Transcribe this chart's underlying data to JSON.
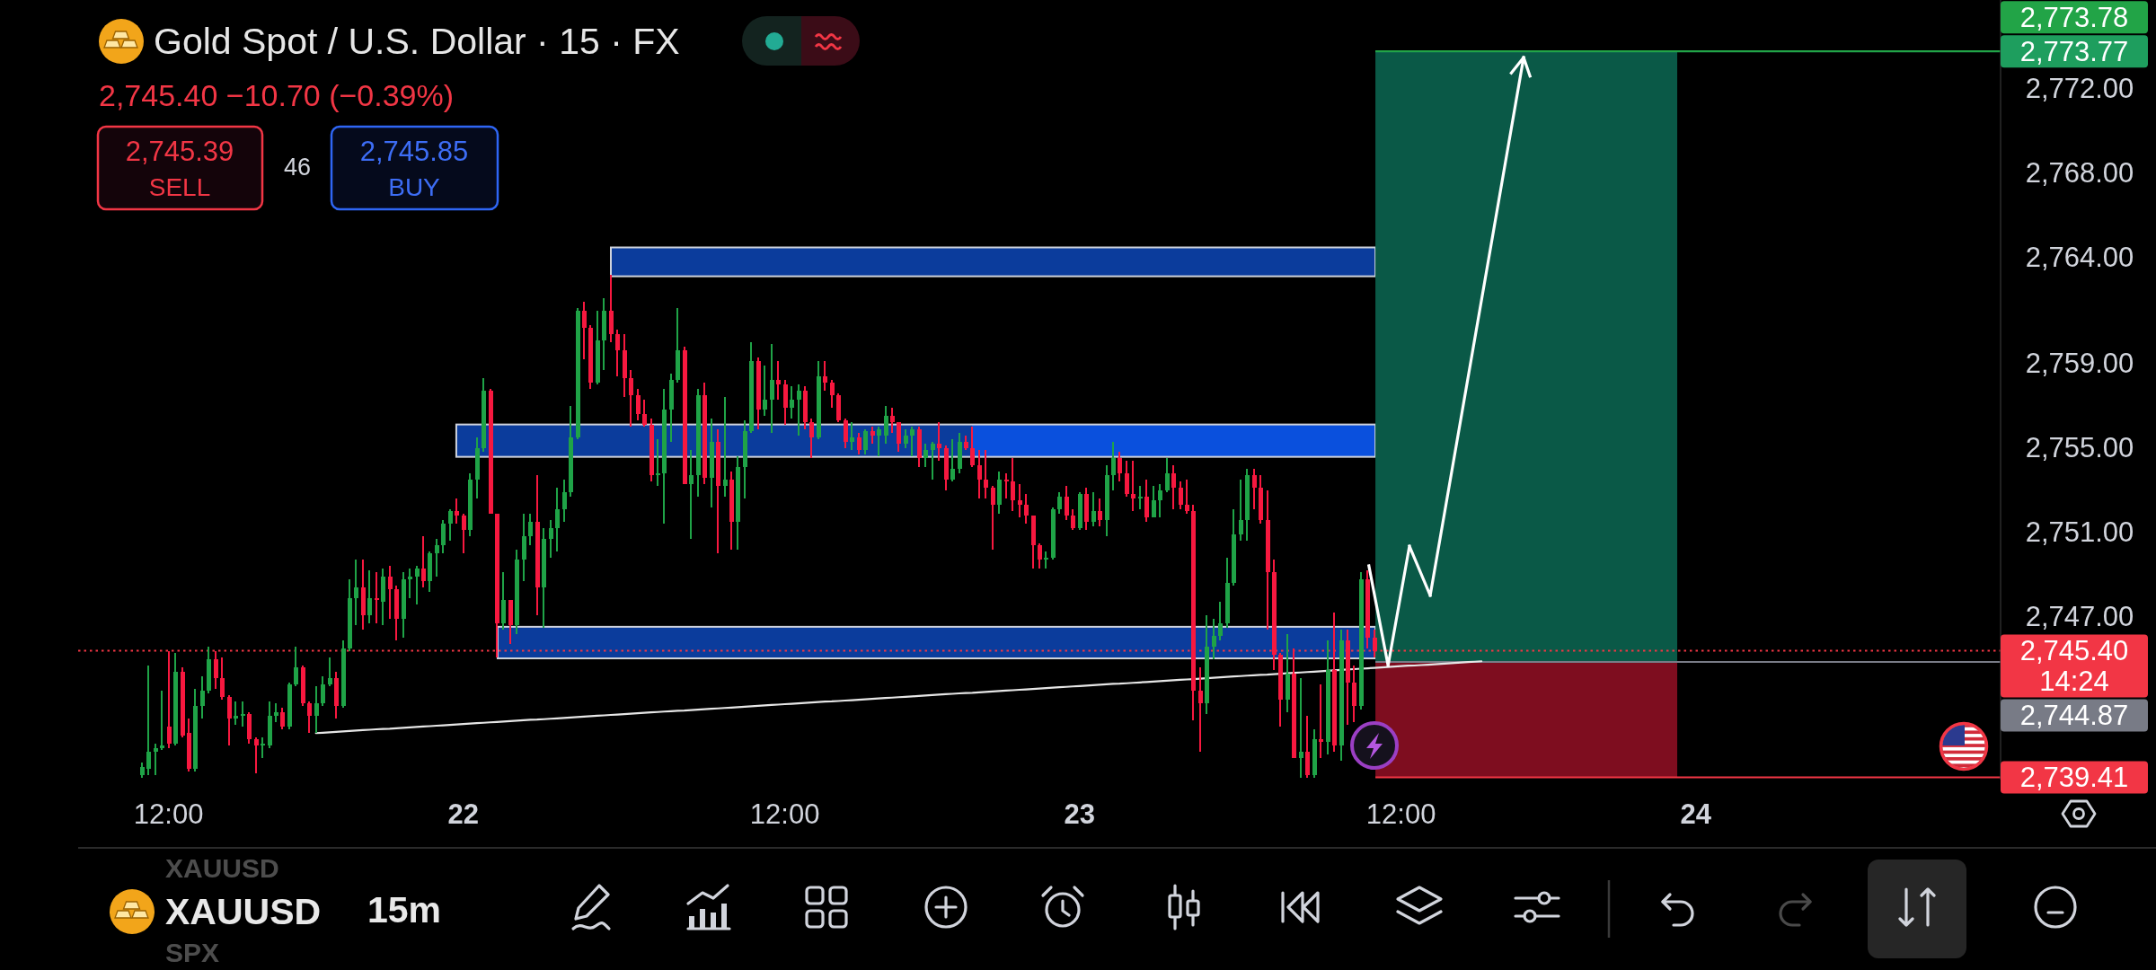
{
  "chart_data": {
    "type": "candlestick",
    "title": "Gold Spot / U.S. Dollar · 15 · FX",
    "subtitle": "2,745.40 −10.70 (−0.39%)",
    "annotations": [
      "2,745.39",
      "SELL",
      "46",
      "2,745.85",
      "BUY",
      "XAUUSD",
      "XAUUSD",
      "SPX",
      "15m"
    ],
    "categories": [
      null,
      null,
      null,
      null,
      null,
      null,
      null,
      null,
      null,
      null,
      null,
      null,
      null,
      "12:00",
      null,
      null,
      null,
      null,
      null,
      null,
      null,
      null,
      null,
      null,
      null,
      null,
      null,
      null,
      null,
      null,
      null,
      null,
      null,
      null,
      null,
      null,
      null,
      null,
      null,
      null,
      null,
      null,
      null,
      null,
      null,
      null,
      null,
      null,
      null,
      null,
      null,
      null,
      null,
      null,
      null,
      null,
      null,
      "22",
      null,
      null,
      null,
      null,
      null,
      null,
      null,
      null,
      null,
      null,
      null,
      null,
      null,
      null,
      null,
      null,
      null,
      null,
      null,
      null,
      null,
      null,
      null,
      null,
      null,
      null,
      null,
      null,
      null,
      null,
      null,
      null,
      null,
      null,
      null,
      null,
      null,
      null,
      null,
      null,
      null,
      null,
      null,
      null,
      null,
      null,
      null,
      "12:00",
      null,
      null,
      null,
      null,
      null,
      null,
      null,
      null,
      null,
      null,
      null,
      null,
      null,
      null,
      null,
      null,
      null,
      null,
      null,
      null,
      null,
      null,
      null,
      null,
      null,
      null,
      null,
      null,
      null,
      null,
      null,
      null,
      null,
      null,
      null,
      null,
      null,
      null,
      null,
      null,
      null,
      null,
      null,
      "23",
      null,
      null,
      null,
      null,
      null,
      null,
      null,
      null,
      null,
      null,
      null,
      null,
      null,
      null,
      null,
      null,
      null,
      null,
      null,
      null,
      null,
      null,
      null,
      null,
      null,
      null,
      null,
      null,
      null,
      null,
      null,
      null,
      null,
      null,
      null,
      null,
      null,
      null,
      null,
      null,
      null,
      null,
      null,
      null,
      null,
      null,
      null,
      "12:00",
      null,
      null,
      null,
      null,
      null,
      null,
      null,
      null,
      null,
      null,
      null,
      null,
      null,
      null,
      null,
      null,
      null,
      null,
      null,
      null,
      null,
      null,
      null,
      null,
      null,
      null,
      null,
      null,
      null,
      null,
      null,
      null,
      null,
      null,
      null,
      null,
      null,
      null,
      null,
      null,
      null,
      null,
      null,
      "24",
      null,
      null,
      null,
      null,
      null,
      null,
      null,
      null,
      null,
      null,
      null,
      null,
      null,
      null,
      null,
      null,
      null,
      null,
      null,
      null,
      null,
      null,
      null,
      null,
      null,
      null,
      null,
      null,
      null,
      null,
      null,
      null,
      null,
      null,
      null,
      null,
      null,
      null,
      null,
      null,
      null,
      null,
      null,
      null,
      null
    ],
    "ohlc": [
      null,
      null,
      null,
      null,
      null,
      null,
      null,
      null,
      null,
      [
        2739.5,
        2740.1,
        2739.4,
        2739.9
      ],
      [
        2739.8,
        2744.7,
        2739.5,
        2740.6
      ],
      [
        2740.6,
        2741.0,
        2739.5,
        2740.8
      ],
      [
        2740.8,
        2743.5,
        2740.7,
        2740.9
      ],
      [
        2741.8,
        2745.4,
        2740.8,
        2741.0
      ],
      [
        2741.0,
        2745.3,
        2740.9,
        2744.4
      ],
      [
        2744.4,
        2744.6,
        2741.3,
        2741.4
      ],
      [
        2741.5,
        2742.2,
        2739.7,
        2739.8
      ],
      [
        2739.8,
        2743.6,
        2739.7,
        2742.8
      ],
      [
        2742.8,
        2744.2,
        2742.2,
        2743.5
      ],
      [
        2743.5,
        2745.6,
        2743.4,
        2745.0
      ],
      [
        2745.0,
        2745.4,
        2743.6,
        2744.1
      ],
      [
        2744.1,
        2745.1,
        2743.1,
        2743.2
      ],
      [
        2743.2,
        2743.3,
        2740.9,
        2742.2
      ],
      [
        2742.2,
        2743.0,
        2741.9,
        2742.3
      ],
      [
        2742.3,
        2743.0,
        2741.8,
        2742.4
      ],
      [
        2742.4,
        2742.5,
        2741.0,
        2741.2
      ],
      [
        2741.2,
        2741.3,
        2739.6,
        2740.9
      ],
      [
        2740.9,
        2741.3,
        2740.3,
        2741.0
      ],
      [
        2740.9,
        2743.0,
        2740.8,
        2742.3
      ],
      [
        2742.3,
        2742.9,
        2742.0,
        2742.5
      ],
      [
        2742.5,
        2742.7,
        2741.7,
        2741.8
      ],
      [
        2741.8,
        2743.9,
        2741.7,
        2743.8
      ],
      [
        2743.8,
        2745.6,
        2743.7,
        2744.6
      ],
      [
        2744.6,
        2744.7,
        2742.8,
        2742.9
      ],
      [
        2742.9,
        2743.0,
        2741.5,
        2742.3
      ],
      [
        2742.3,
        2743.7,
        2741.5,
        2742.9
      ],
      [
        2742.9,
        2744.2,
        2742.8,
        2743.8
      ],
      [
        2743.8,
        2745.1,
        2743.7,
        2744.1
      ],
      [
        2744.1,
        2744.4,
        2742.2,
        2742.8
      ],
      [
        2742.8,
        2745.9,
        2742.7,
        2745.5
      ],
      [
        2745.5,
        2748.8,
        2745.4,
        2747.9
      ],
      [
        2747.9,
        2749.7,
        2746.6,
        2748.4
      ],
      [
        2748.4,
        2749.7,
        2746.4,
        2747.1
      ],
      [
        2747.1,
        2749.2,
        2746.7,
        2747.9
      ],
      [
        2747.9,
        2749.1,
        2746.7,
        2747.8
      ],
      [
        2747.7,
        2749.3,
        2746.6,
        2748.9
      ],
      [
        2748.9,
        2749.4,
        2746.9,
        2748.3
      ],
      [
        2748.3,
        2748.5,
        2745.9,
        2746.9
      ],
      [
        2746.9,
        2749.1,
        2746.0,
        2748.8
      ],
      [
        2748.8,
        2749.3,
        2747.9,
        2748.9
      ],
      [
        2748.9,
        2749.4,
        2747.6,
        2749.3
      ],
      [
        2749.3,
        2750.8,
        2748.4,
        2748.7
      ],
      [
        2748.7,
        2750.1,
        2748.2,
        2750.0
      ],
      [
        2750.0,
        2750.7,
        2748.9,
        2750.4
      ],
      [
        2750.4,
        2751.6,
        2750.0,
        2751.4
      ],
      [
        2751.4,
        2752.1,
        2750.6,
        2752.0
      ],
      [
        2752.0,
        2752.6,
        2751.4,
        2751.8
      ],
      [
        2751.8,
        2751.9,
        2750.0,
        2751.1
      ],
      [
        2751.1,
        2753.8,
        2750.8,
        2753.5
      ],
      [
        2753.5,
        2755.5,
        2752.6,
        2755.0
      ],
      [
        2755.0,
        2758.3,
        2754.8,
        2757.7
      ],
      [
        2757.7,
        2757.8,
        2751.9,
        2751.9
      ],
      [
        2751.9,
        2751.9,
        2745.1,
        2746.7
      ],
      [
        2746.7,
        2749.1,
        2746.4,
        2747.8
      ],
      [
        2747.8,
        2747.8,
        2745.7,
        2746.6
      ],
      [
        2746.6,
        2750.2,
        2746.2,
        2749.7
      ],
      [
        2749.7,
        2751.9,
        2748.7,
        2750.8
      ],
      [
        2750.8,
        2751.9,
        2750.4,
        2751.5
      ],
      [
        2751.5,
        2753.7,
        2747.1,
        2748.4
      ],
      [
        2748.4,
        2751.2,
        2746.5,
        2750.7
      ],
      [
        2750.7,
        2751.6,
        2749.8,
        2751.2
      ],
      [
        2751.2,
        2753.1,
        2750.1,
        2752.1
      ],
      [
        2752.1,
        2753.5,
        2751.5,
        2752.9
      ],
      [
        2752.9,
        2757.0,
        2752.7,
        2755.5
      ],
      [
        2755.5,
        2761.6,
        2755.4,
        2761.5
      ],
      [
        2761.5,
        2761.9,
        2759.2,
        2760.7
      ],
      [
        2760.7,
        2760.8,
        2757.8,
        2758.1
      ],
      [
        2758.1,
        2761.5,
        2758.0,
        2760.1
      ],
      [
        2760.1,
        2762.1,
        2758.7,
        2761.5
      ],
      [
        2761.5,
        2763.2,
        2760.0,
        2760.4
      ],
      [
        2760.4,
        2760.6,
        2758.4,
        2759.6
      ],
      [
        2759.6,
        2760.4,
        2757.4,
        2758.3
      ],
      [
        2758.3,
        2758.7,
        2756.0,
        2757.5
      ],
      [
        2757.5,
        2757.8,
        2756.3,
        2756.6
      ],
      [
        2756.6,
        2757.3,
        2756.0,
        2756.1
      ],
      [
        2756.1,
        2756.4,
        2753.4,
        2753.7
      ],
      [
        2753.7,
        2755.4,
        2753.2,
        2753.8
      ],
      [
        2753.8,
        2757.8,
        2751.4,
        2756.8
      ],
      [
        2756.8,
        2758.5,
        2755.3,
        2758.2
      ],
      [
        2758.2,
        2761.6,
        2758.1,
        2759.6
      ],
      [
        2759.6,
        2759.8,
        2753.3,
        2753.3
      ],
      [
        2753.3,
        2754.9,
        2750.7,
        2753.7
      ],
      [
        2753.7,
        2757.8,
        2752.7,
        2757.5
      ],
      [
        2757.5,
        2758.1,
        2753.3,
        2753.6
      ],
      [
        2753.6,
        2756.4,
        2752.2,
        2755.3
      ],
      [
        2755.3,
        2755.9,
        2750.0,
        2753.2
      ],
      [
        2753.2,
        2757.4,
        2752.7,
        2753.5
      ],
      [
        2753.5,
        2753.9,
        2750.2,
        2751.5
      ],
      [
        2751.5,
        2754.6,
        2750.2,
        2754.1
      ],
      [
        2754.1,
        2756.3,
        2752.6,
        2755.8
      ],
      [
        2755.8,
        2760.0,
        2755.7,
        2759.1
      ],
      [
        2759.1,
        2759.3,
        2755.9,
        2756.8
      ],
      [
        2756.8,
        2758.9,
        2756.5,
        2757.3
      ],
      [
        2757.3,
        2759.9,
        2755.7,
        2758.2
      ],
      [
        2758.2,
        2759.1,
        2757.3,
        2758.0
      ],
      [
        2758.0,
        2758.2,
        2756.1,
        2756.9
      ],
      [
        2756.9,
        2757.9,
        2756.4,
        2757.3
      ],
      [
        2757.3,
        2758.0,
        2755.6,
        2757.7
      ],
      [
        2757.7,
        2757.9,
        2755.9,
        2756.2
      ],
      [
        2756.2,
        2756.4,
        2754.5,
        2755.5
      ],
      [
        2755.5,
        2759.1,
        2755.4,
        2758.4
      ],
      [
        2758.4,
        2759.1,
        2757.7,
        2758.1
      ],
      [
        2758.1,
        2758.2,
        2756.9,
        2757.5
      ],
      [
        2757.5,
        2757.6,
        2756.2,
        2756.3
      ],
      [
        2756.3,
        2756.4,
        2755.0,
        2755.3
      ],
      [
        2755.3,
        2756.2,
        2754.9,
        2755.5
      ],
      [
        2755.5,
        2755.7,
        2754.7,
        2754.9
      ],
      [
        2754.9,
        2755.9,
        2754.7,
        2755.8
      ],
      [
        2755.8,
        2756.0,
        2755.2,
        2755.6
      ],
      [
        2755.6,
        2756.0,
        2754.6,
        2755.9
      ],
      [
        2755.6,
        2757.0,
        2755.2,
        2756.5
      ],
      [
        2756.5,
        2756.9,
        2755.7,
        2756.2
      ],
      [
        2756.2,
        2756.2,
        2754.8,
        2755.2
      ],
      [
        2755.2,
        2755.9,
        2755.0,
        2755.6
      ],
      [
        2755.6,
        2756.0,
        2754.6,
        2755.9
      ],
      [
        2755.9,
        2756.0,
        2754.1,
        2754.5
      ],
      [
        2754.5,
        2755.2,
        2754.1,
        2754.9
      ],
      [
        2754.9,
        2755.3,
        2753.5,
        2755.2
      ],
      [
        2755.2,
        2756.2,
        2754.4,
        2755.0
      ],
      [
        2755.0,
        2755.1,
        2753.0,
        2753.5
      ],
      [
        2753.5,
        2755.4,
        2753.4,
        2754.0
      ],
      [
        2754.0,
        2755.7,
        2753.8,
        2755.3
      ],
      [
        2755.3,
        2755.6,
        2754.9,
        2755.0
      ],
      [
        2755.0,
        2756.0,
        2754.1,
        2754.2
      ],
      [
        2754.2,
        2754.9,
        2752.6,
        2753.5
      ],
      [
        2753.5,
        2754.9,
        2752.6,
        2753.1
      ],
      [
        2753.1,
        2753.2,
        2750.2,
        2752.3
      ],
      [
        2752.3,
        2753.9,
        2751.9,
        2753.5
      ],
      [
        2753.5,
        2753.8,
        2752.6,
        2753.4
      ],
      [
        2753.4,
        2754.5,
        2752.0,
        2752.5
      ],
      [
        2752.5,
        2753.3,
        2751.7,
        2752.3
      ],
      [
        2752.3,
        2752.8,
        2751.4,
        2751.8
      ],
      [
        2751.8,
        2751.8,
        2749.3,
        2750.4
      ],
      [
        2750.4,
        2750.5,
        2749.3,
        2749.7
      ],
      [
        2749.7,
        2750.1,
        2749.3,
        2749.8
      ],
      [
        2749.8,
        2752.2,
        2749.7,
        2752.1
      ],
      [
        2752.1,
        2752.9,
        2751.9,
        2752.7
      ],
      [
        2752.7,
        2753.2,
        2751.6,
        2751.8
      ],
      [
        2751.8,
        2752.1,
        2751.1,
        2751.2
      ],
      [
        2751.2,
        2752.9,
        2751.1,
        2752.8
      ],
      [
        2752.8,
        2753.1,
        2751.1,
        2751.5
      ],
      [
        2751.5,
        2752.9,
        2751.3,
        2752.0
      ],
      [
        2752.0,
        2752.6,
        2751.3,
        2751.6
      ],
      [
        2751.6,
        2754.2,
        2750.8,
        2753.7
      ],
      [
        2753.7,
        2755.3,
        2753.0,
        2754.5
      ],
      [
        2754.5,
        2754.8,
        2753.4,
        2753.8
      ],
      [
        2753.8,
        2754.4,
        2752.7,
        2752.8
      ],
      [
        2752.8,
        2754.4,
        2752.0,
        2752.6
      ],
      [
        2752.6,
        2753.2,
        2752.1,
        2752.7
      ],
      [
        2752.7,
        2753.5,
        2751.5,
        2751.7
      ],
      [
        2751.7,
        2753.2,
        2751.7,
        2752.5
      ],
      [
        2752.5,
        2753.3,
        2751.7,
        2753.0
      ],
      [
        2753.0,
        2754.5,
        2752.9,
        2753.8
      ],
      [
        2753.8,
        2754.2,
        2752.1,
        2753.1
      ],
      [
        2753.1,
        2753.4,
        2752.1,
        2752.3
      ],
      [
        2752.3,
        2753.5,
        2751.9,
        2752.0
      ],
      [
        2752.0,
        2752.3,
        2742.1,
        2743.5
      ],
      [
        2743.5,
        2744.6,
        2740.6,
        2742.9
      ],
      [
        2742.9,
        2747.1,
        2742.4,
        2745.6
      ],
      [
        2745.6,
        2746.9,
        2745.0,
        2746.1
      ],
      [
        2746.1,
        2747.7,
        2745.9,
        2746.7
      ],
      [
        2746.7,
        2749.8,
        2746.5,
        2748.6
      ],
      [
        2748.6,
        2752.1,
        2748.5,
        2750.9
      ],
      [
        2750.9,
        2753.5,
        2750.6,
        2751.6
      ],
      [
        2751.6,
        2754.0,
        2750.6,
        2753.7
      ],
      [
        2753.7,
        2754.0,
        2752.1,
        2753.1
      ],
      [
        2753.1,
        2753.7,
        2751.4,
        2751.6
      ],
      [
        2751.6,
        2753.0,
        2746.4,
        2749.1
      ],
      [
        2749.1,
        2749.7,
        2744.5,
        2745.2
      ],
      [
        2745.2,
        2745.3,
        2741.8,
        2743.1
      ],
      [
        2743.1,
        2746.2,
        2742.5,
        2744.3
      ],
      [
        2744.3,
        2745.5,
        2740.3,
        2740.3
      ],
      [
        2740.3,
        2744.1,
        2739.4,
        2740.6
      ],
      [
        2740.6,
        2742.3,
        2739.4,
        2739.5
      ],
      [
        2739.5,
        2741.7,
        2739.4,
        2741.2
      ],
      [
        2741.2,
        2743.8,
        2740.3,
        2741.1
      ],
      [
        2741.1,
        2745.9,
        2740.5,
        2744.5
      ],
      [
        2744.5,
        2747.2,
        2740.6,
        2740.9
      ],
      [
        2740.9,
        2746.4,
        2740.2,
        2745.9
      ],
      [
        2745.9,
        2746.4,
        2741.9,
        2743.9
      ],
      [
        2743.9,
        2744.7,
        2742.0,
        2742.8
      ],
      [
        2742.8,
        2749.1,
        2742.6,
        2748.8
      ],
      [
        2748.8,
        2749.2,
        2745.5,
        2746.0
      ],
      [
        2746.0,
        2746.4,
        2745.1,
        2745.4
      ],
      null,
      null,
      null,
      null,
      null,
      null,
      null,
      null,
      null,
      null,
      null,
      null,
      null,
      null,
      null,
      null,
      null,
      null,
      null,
      null,
      null,
      null,
      null,
      null,
      null,
      null,
      null,
      null,
      null,
      null,
      null,
      null,
      null,
      null,
      null,
      null,
      null,
      null,
      null,
      null,
      null,
      null,
      null,
      null,
      null,
      null,
      null,
      null,
      null,
      null,
      null,
      null,
      null,
      null,
      null,
      null,
      null,
      null,
      null,
      null,
      null,
      null,
      null,
      null,
      null,
      null,
      null,
      null,
      null,
      null,
      null,
      null,
      null,
      null,
      null,
      null,
      null,
      null,
      null,
      null,
      null,
      null,
      null,
      null,
      null,
      null,
      null,
      null,
      null,
      null,
      null,
      null,
      null
    ],
    "colors": [
      null,
      null,
      null,
      null,
      null,
      null,
      null,
      null,
      null,
      "#1fa347",
      "#1fa347",
      "#1fa347",
      "#1fa347",
      "#f7183f",
      "#1fa347",
      "#f7183f",
      "#f7183f",
      "#1fa347",
      "#1fa347",
      "#1fa347",
      "#f7183f",
      "#f7183f",
      "#f7183f",
      "#1fa347",
      "#1fa347",
      "#f7183f",
      "#f7183f",
      "#1fa347",
      "#1fa347",
      "#1fa347",
      "#f7183f",
      "#1fa347",
      "#1fa347",
      "#f7183f",
      "#f7183f",
      "#1fa347",
      "#1fa347",
      "#1fa347",
      "#f7183f",
      "#1fa347",
      "#1fa347",
      "#1fa347",
      "#f7183f",
      "#1fa347",
      "#f7183f",
      "#1fa347",
      "#f7183f",
      "#f7183f",
      "#1fa347",
      "#1fa347",
      "#1fa347",
      "#f7183f",
      "#1fa347",
      "#1fa347",
      "#1fa347",
      "#1fa347",
      "#f7183f",
      "#f7183f",
      "#1fa347",
      "#1fa347",
      "#1fa347",
      "#f7183f",
      "#f7183f",
      "#1fa347",
      "#f7183f",
      "#1fa347",
      "#1fa347",
      "#1fa347",
      "#f7183f",
      "#1fa347",
      "#1fa347",
      "#1fa347",
      "#1fa347",
      "#1fa347",
      "#1fa347",
      "#f7183f",
      "#f7183f",
      "#1fa347",
      "#1fa347",
      "#f7183f",
      "#f7183f",
      "#f7183f",
      "#f7183f",
      "#f7183f",
      "#f7183f",
      "#f7183f",
      "#1fa347",
      "#1fa347",
      "#1fa347",
      "#1fa347",
      "#f7183f",
      "#1fa347",
      "#1fa347",
      "#f7183f",
      "#1fa347",
      "#f7183f",
      "#1fa347",
      "#f7183f",
      "#1fa347",
      "#1fa347",
      "#1fa347",
      "#f7183f",
      "#1fa347",
      "#1fa347",
      "#f7183f",
      "#f7183f",
      "#1fa347",
      "#1fa347",
      "#f7183f",
      "#f7183f",
      "#1fa347",
      "#f7183f",
      "#f7183f",
      "#f7183f",
      "#f7183f",
      "#1fa347",
      "#f7183f",
      "#1fa347",
      "#f7183f",
      "#1fa347",
      "#1fa347",
      "#f7183f",
      "#f7183f",
      "#1fa347",
      "#1fa347",
      "#f7183f",
      "#1fa347",
      "#1fa347",
      "#f7183f",
      "#f7183f",
      "#1fa347",
      "#1fa347",
      "#f7183f",
      "#f7183f",
      "#f7183f",
      "#f7183f",
      "#f7183f",
      "#1fa347",
      "#f7183f",
      "#f7183f",
      "#f7183f",
      "#f7183f",
      "#f7183f",
      "#f7183f",
      "#1fa347",
      "#1fa347",
      "#1fa347",
      "#f7183f",
      "#f7183f",
      "#1fa347",
      "#f7183f",
      "#1fa347",
      "#f7183f",
      "#1fa347",
      "#1fa347",
      "#f7183f",
      "#f7183f",
      "#f7183f",
      "#1fa347",
      "#f7183f",
      "#1fa347",
      "#1fa347",
      "#1fa347",
      "#f7183f",
      "#f7183f",
      "#f7183f",
      "#f7183f",
      "#f7183f",
      "#1fa347",
      "#1fa347",
      "#1fa347",
      "#1fa347",
      "#1fa347",
      "#1fa347",
      "#1fa347",
      "#f7183f",
      "#f7183f",
      "#f7183f",
      "#f7183f",
      "#f7183f",
      "#1fa347",
      "#f7183f",
      "#1fa347",
      "#f7183f",
      "#1fa347",
      "#f7183f",
      "#1fa347",
      "#f7183f",
      "#1fa347",
      "#f7183f",
      "#f7183f",
      "#1fa347",
      "#f7183f",
      "#f7183f",
      null,
      null,
      null,
      null,
      null,
      null,
      null,
      null,
      null,
      null,
      null,
      null,
      null,
      null,
      null,
      null,
      null,
      null,
      null,
      null,
      null,
      null,
      null,
      null,
      null,
      null,
      null,
      null,
      null,
      null,
      null,
      null,
      null,
      null,
      null,
      null,
      null,
      null,
      null,
      null,
      null,
      null,
      null,
      null,
      null,
      null,
      null,
      null,
      null,
      null,
      null,
      null,
      null,
      null,
      null,
      null,
      null,
      null,
      null,
      null,
      null,
      null,
      null,
      null,
      null,
      null,
      null,
      null,
      null,
      null,
      null,
      null,
      null,
      null,
      null,
      null,
      null,
      null,
      null,
      null,
      null,
      null,
      null,
      null,
      null,
      null,
      null,
      null,
      null,
      null,
      null,
      null,
      null
    ],
    "series": [
      {
        "type": "line",
        "color": "#e6e6e6",
        "values": [
          null,
          null,
          null,
          null,
          null,
          null,
          null,
          null,
          null,
          null,
          null,
          null,
          null,
          null,
          null,
          null,
          null,
          null,
          null,
          null,
          null,
          null,
          null,
          null,
          null,
          null,
          null,
          null,
          null,
          null,
          null,
          null,
          null,
          null,
          null,
          2741.5,
          2741.52,
          2741.54,
          2741.56,
          2741.58,
          2741.6,
          2741.62,
          2741.64,
          2741.66,
          2741.68,
          2741.7,
          2741.71,
          2741.73,
          2741.75,
          2741.77,
          2741.79,
          2741.81,
          2741.83,
          2741.85,
          2741.87,
          2741.89,
          2741.91,
          2741.93,
          2741.95,
          2741.97,
          2741.99,
          2742.01,
          2742.03,
          2742.05,
          2742.07,
          2742.09,
          2742.11,
          2742.13,
          2742.14,
          2742.16,
          2742.18,
          2742.2,
          2742.22,
          2742.24,
          2742.26,
          2742.28,
          2742.3,
          2742.32,
          2742.34,
          2742.36,
          2742.38,
          2742.4,
          2742.42,
          2742.44,
          2742.46,
          2742.48,
          2742.5,
          2742.52,
          2742.54,
          2742.56,
          2742.57,
          2742.59,
          2742.61,
          2742.63,
          2742.65,
          2742.67,
          2742.69,
          2742.71,
          2742.73,
          2742.75,
          2742.77,
          2742.79,
          2742.81,
          2742.83,
          2742.85,
          2742.87,
          2742.89,
          2742.91,
          2742.93,
          2742.95,
          2742.97,
          2742.99,
          2743.0,
          2743.02,
          2743.04,
          2743.06,
          2743.08,
          2743.1,
          2743.12,
          2743.14,
          2743.16,
          2743.18,
          2743.2,
          2743.22,
          2743.24,
          2743.26,
          2743.28,
          2743.3,
          2743.32,
          2743.34,
          2743.36,
          2743.38,
          2743.4,
          2743.41,
          2743.43,
          2743.45,
          2743.47,
          2743.49,
          2743.51,
          2743.53,
          2743.55,
          2743.57,
          2743.59,
          2743.61,
          2743.63,
          2743.65,
          2743.67,
          2743.69,
          2743.71,
          2743.73,
          2743.75,
          2743.77,
          2743.79,
          2743.81,
          2743.83,
          2743.84,
          2743.86,
          2743.88,
          2743.9,
          2743.92,
          2743.94,
          2743.96,
          2743.98,
          2744.0,
          2744.02,
          2744.04,
          2744.06,
          2744.08,
          2744.1,
          2744.12,
          2744.14,
          2744.16,
          2744.18,
          2744.2,
          2744.22,
          2744.24,
          2744.26,
          2744.27,
          2744.29,
          2744.31,
          2744.33,
          2744.35,
          2744.37,
          2744.39,
          2744.41,
          2744.43,
          2744.45,
          2744.47,
          2744.49,
          2744.51,
          2744.53,
          2744.55,
          2744.57,
          2744.59,
          2744.61,
          2744.63,
          2744.65,
          2744.67,
          2744.69,
          2744.7,
          2744.72,
          2744.74,
          2744.76,
          2744.78,
          2744.8,
          2744.82,
          2744.84,
          2744.86,
          2744.88,
          2744.9,
          null,
          null,
          null,
          null,
          null,
          null,
          null,
          null,
          null,
          null,
          null,
          null,
          null,
          null,
          null,
          null,
          null,
          null,
          null,
          null,
          null,
          null,
          null,
          null,
          null,
          null,
          null,
          null,
          null,
          null,
          null,
          null,
          null,
          null,
          null,
          null,
          null,
          null,
          null,
          null,
          null,
          null,
          null,
          null,
          null,
          null,
          null,
          null,
          null,
          null,
          null,
          null,
          null,
          null,
          null,
          null,
          null,
          null,
          null,
          null,
          null,
          null,
          null,
          null,
          null,
          null,
          null,
          null,
          null,
          null,
          null,
          null,
          null,
          null,
          null,
          null,
          null
        ]
      }
    ],
    "ylim": [
      2739.3,
      2776.2
    ],
    "yticks": [
      {
        "value": 2772,
        "label": "2,772.00"
      },
      {
        "value": 2768,
        "label": "2,768.00"
      },
      {
        "value": 2764,
        "label": "2,764.00"
      },
      {
        "value": 2759,
        "label": "2,759.00"
      },
      {
        "value": 2755,
        "label": "2,755.00"
      },
      {
        "value": 2751,
        "label": "2,751.00"
      },
      {
        "value": 2747,
        "label": "2,747.00"
      }
    ],
    "ref_lines": [
      {
        "axis": "y",
        "value": 2773.77,
        "label": "2,773.77",
        "color": "#1e9e5e"
      },
      {
        "axis": "y",
        "value": 2773.78,
        "label": "2,773.78",
        "color": "#22a447"
      },
      {
        "axis": "y",
        "value": 2745.4,
        "label": "2,745.40\n14:24",
        "color": "#f23645",
        "line_style": "dotted"
      },
      {
        "axis": "y",
        "value": 2744.87,
        "label": "2,744.87",
        "color": "#787b86"
      },
      {
        "axis": "y",
        "value": 2739.41,
        "label": "2,739.41",
        "color": "#f23645"
      }
    ]
  }
}
